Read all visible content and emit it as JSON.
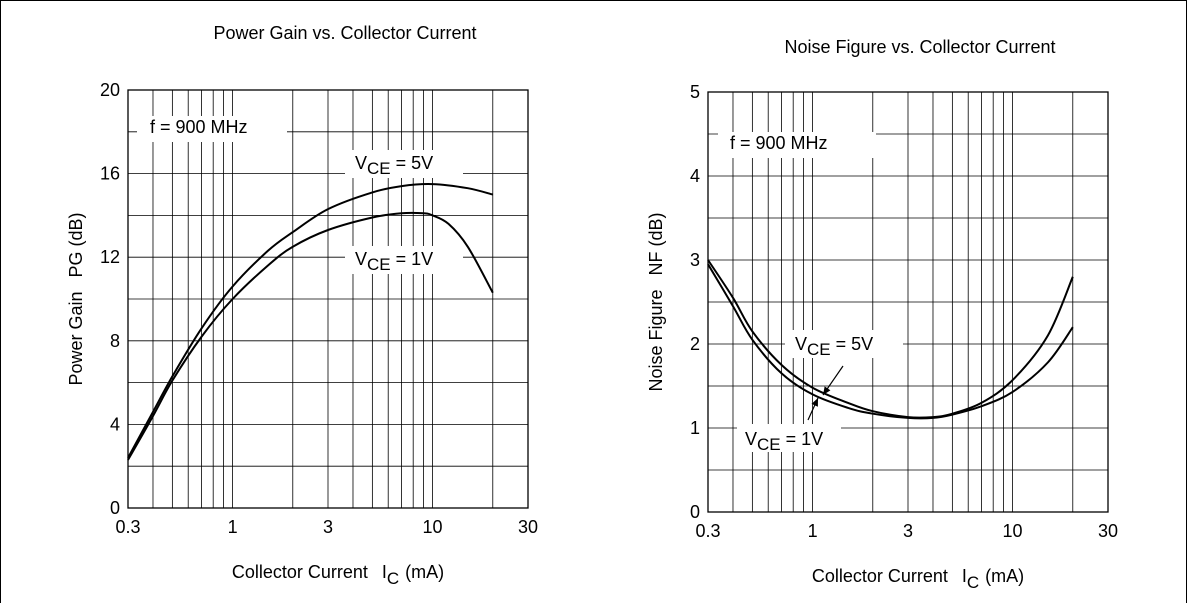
{
  "chart_data": [
    {
      "type": "line",
      "title": "Power Gain vs. Collector Current",
      "xlabel": {
        "main": "Collector Current",
        "sym": "I",
        "sub": "C",
        "unit": "(mA)"
      },
      "ylabel": {
        "main": "Power Gain",
        "sym": "PG (dB)"
      },
      "xscale": "log",
      "xlim": [
        0.3,
        30
      ],
      "ylim": [
        0,
        20
      ],
      "xticks": [
        0.3,
        1,
        3,
        10,
        30
      ],
      "xtick_labels": [
        "0.3",
        "1",
        "3",
        "10",
        "30"
      ],
      "yticks": [
        0,
        4,
        8,
        12,
        16,
        20
      ],
      "ytick_labels": [
        "0",
        "4",
        "8",
        "12",
        "16",
        "20"
      ],
      "grid": true,
      "annotations": [
        {
          "id": "freq",
          "text": "f = 900 MHz"
        },
        {
          "id": "s5",
          "sym": "V",
          "sub": "CE",
          "rest": " = 5V"
        },
        {
          "id": "s1",
          "sym": "V",
          "sub": "CE",
          "rest": " = 1V"
        }
      ],
      "series": [
        {
          "label_ref": "s5",
          "x": [
            0.3,
            0.4,
            0.5,
            0.7,
            1,
            1.5,
            2,
            3,
            5,
            7,
            10,
            15,
            20
          ],
          "y": [
            2.4,
            4.6,
            6.3,
            8.6,
            10.6,
            12.3,
            13.2,
            14.3,
            15.1,
            15.4,
            15.5,
            15.3,
            15.0
          ]
        },
        {
          "label_ref": "s1",
          "x": [
            0.3,
            0.4,
            0.5,
            0.7,
            1,
            1.5,
            2,
            3,
            5,
            7,
            9,
            10,
            12,
            15,
            20
          ],
          "y": [
            2.3,
            4.4,
            6.1,
            8.2,
            10.0,
            11.6,
            12.5,
            13.3,
            13.9,
            14.1,
            14.1,
            14.0,
            13.6,
            12.5,
            10.3
          ]
        }
      ]
    },
    {
      "type": "line",
      "title": "Noise Figure vs. Collector Current",
      "xlabel": {
        "main": "Collector Current",
        "sym": "I",
        "sub": "C",
        "unit": "(mA)"
      },
      "ylabel": {
        "main": "Noise Figure",
        "sym": "NF (dB)"
      },
      "xscale": "log",
      "xlim": [
        0.3,
        30
      ],
      "ylim": [
        0,
        5
      ],
      "xticks": [
        0.3,
        1,
        3,
        10,
        30
      ],
      "xtick_labels": [
        "0.3",
        "1",
        "3",
        "10",
        "30"
      ],
      "yticks": [
        0,
        1,
        2,
        3,
        4,
        5
      ],
      "ytick_labels": [
        "0",
        "1",
        "2",
        "3",
        "4",
        "5"
      ],
      "grid": true,
      "annotations": [
        {
          "id": "freq",
          "text": "f = 900 MHz"
        },
        {
          "id": "s5",
          "sym": "V",
          "sub": "CE",
          "rest": " = 5V"
        },
        {
          "id": "s1",
          "sym": "V",
          "sub": "CE",
          "rest": " = 1V"
        }
      ],
      "series": [
        {
          "label_ref": "s5",
          "x": [
            0.3,
            0.4,
            0.5,
            0.7,
            1,
            1.5,
            2,
            3,
            4,
            5,
            7,
            10,
            15,
            20
          ],
          "y": [
            2.95,
            2.45,
            2.05,
            1.65,
            1.4,
            1.24,
            1.17,
            1.12,
            1.12,
            1.16,
            1.26,
            1.43,
            1.78,
            2.2
          ]
        },
        {
          "label_ref": "s1",
          "x": [
            0.3,
            0.4,
            0.5,
            0.7,
            1,
            1.5,
            2,
            3,
            4,
            5,
            7,
            10,
            15,
            20
          ],
          "y": [
            3.0,
            2.55,
            2.15,
            1.75,
            1.48,
            1.3,
            1.2,
            1.13,
            1.13,
            1.17,
            1.3,
            1.57,
            2.1,
            2.8
          ]
        }
      ]
    }
  ]
}
